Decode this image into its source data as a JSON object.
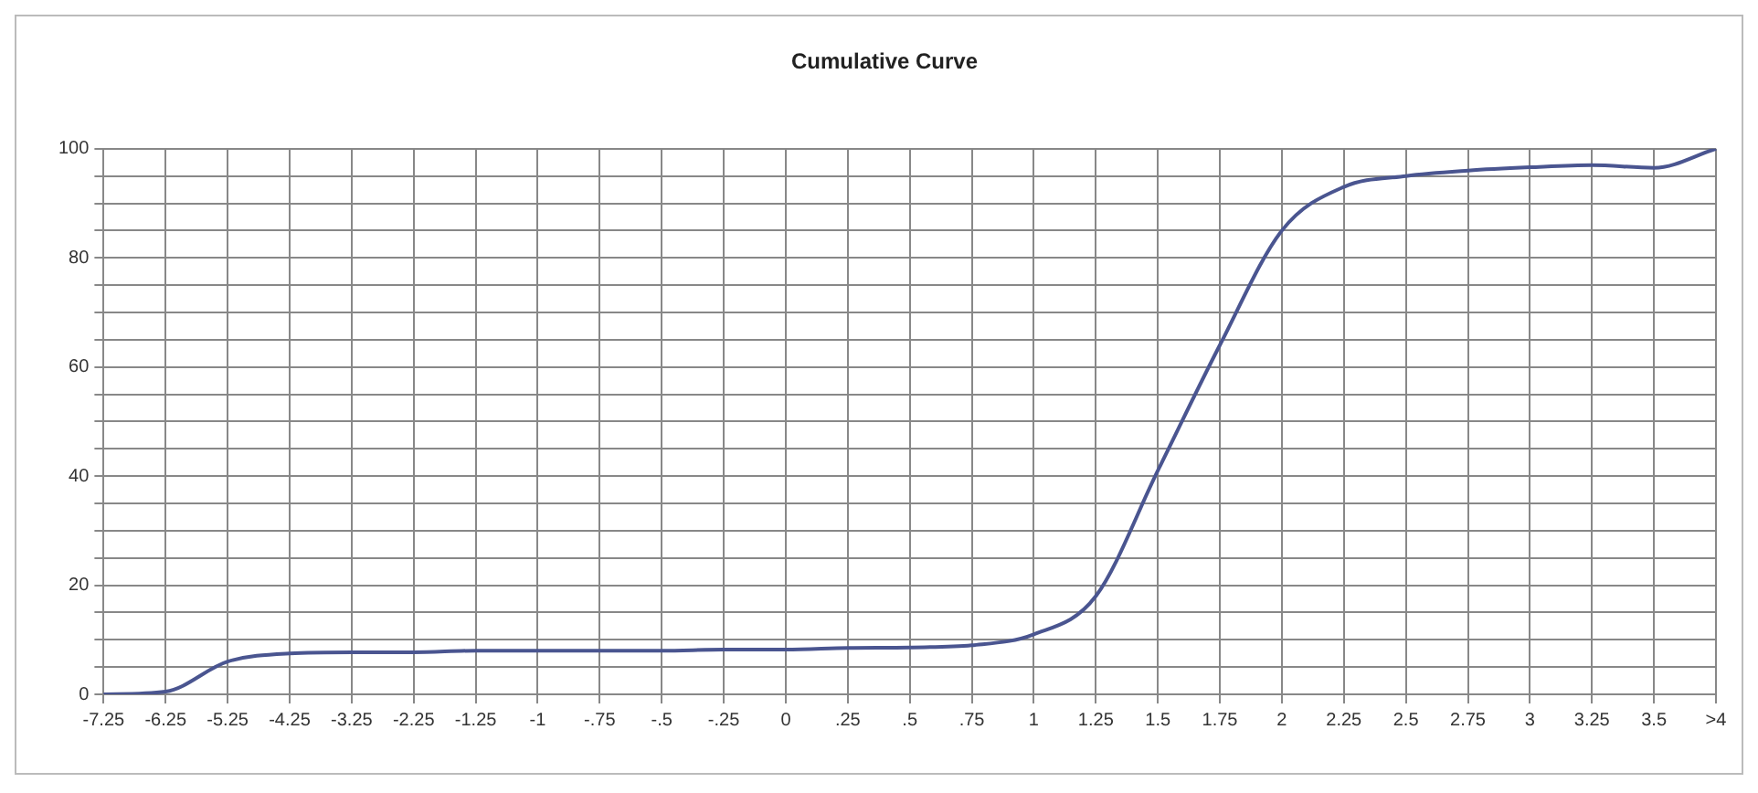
{
  "chart_data": {
    "type": "line",
    "title": "Cumulative Curve",
    "categories": [
      "-7.25",
      "-6.25",
      "-5.25",
      "-4.25",
      "-3.25",
      "-2.25",
      "-1.25",
      "-1",
      "-.75",
      "-.5",
      "-.25",
      "0",
      ".25",
      ".5",
      ".75",
      "1",
      "1.25",
      "1.5",
      "1.75",
      "2",
      "2.25",
      "2.5",
      "2.75",
      "3",
      "3.25",
      "3.5",
      ">4"
    ],
    "series": [
      {
        "color": "#4a5590",
        "values": [
          0,
          0.5,
          6,
          7.5,
          7.7,
          7.7,
          8,
          8,
          8,
          8,
          8.2,
          8.2,
          8.5,
          8.6,
          9,
          11,
          18,
          41,
          64,
          85,
          93,
          95,
          96,
          96.6,
          97,
          96.5,
          100
        ]
      }
    ],
    "ylim": [
      0,
      100
    ],
    "yticks": [
      0,
      {
        "value": 5,
        "label": null
      },
      {
        "value": 10,
        "label": null
      },
      {
        "value": 15,
        "label": null
      },
      20,
      {
        "value": 25,
        "label": null
      },
      {
        "value": 30,
        "label": null
      },
      {
        "value": 35,
        "label": null
      },
      40,
      {
        "value": 45,
        "label": null
      },
      {
        "value": 50,
        "label": null
      },
      {
        "value": 55,
        "label": null
      },
      60,
      {
        "value": 65,
        "label": null
      },
      {
        "value": 70,
        "label": null
      },
      {
        "value": 75,
        "label": null
      },
      80,
      {
        "value": 85,
        "label": null
      },
      {
        "value": 90,
        "label": null
      },
      {
        "value": 95,
        "label": null
      },
      100
    ],
    "grid": true,
    "marker": "none",
    "line_style": "solid",
    "legend": false
  }
}
